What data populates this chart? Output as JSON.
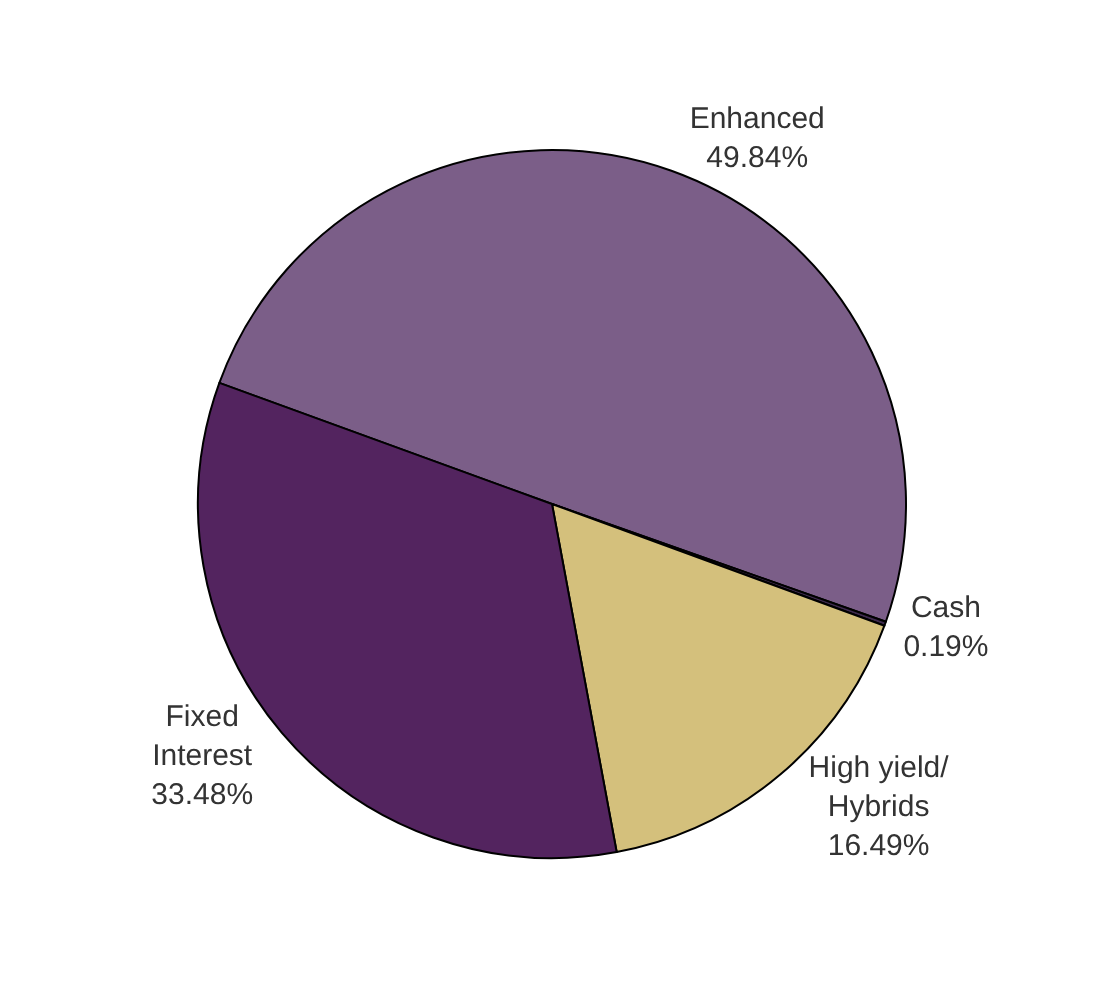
{
  "chart_data": {
    "type": "pie",
    "categories": [
      "Enhanced",
      "Cash",
      "High yield/ Hybrids",
      "Fixed Interest"
    ],
    "values": [
      49.84,
      0.19,
      16.49,
      33.48
    ],
    "value_labels": [
      "49.84%",
      "0.19%",
      "16.49%",
      "33.48%"
    ],
    "colors": [
      "#7b5e88",
      "#3e2a4e",
      "#d4c07c",
      "#53245f"
    ],
    "legend": false
  }
}
